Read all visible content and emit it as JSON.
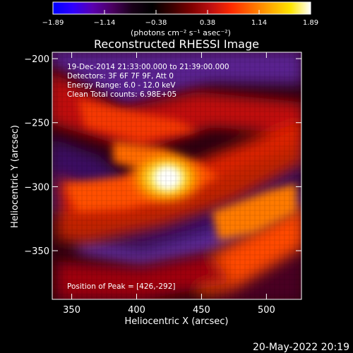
{
  "colorbar": {
    "tick_labels": [
      "−1.89",
      "−1.14",
      "−0.38",
      "0.38",
      "1.14",
      "1.89"
    ],
    "units_label": "(photons cm⁻² s⁻¹ asec⁻²)",
    "colormap": [
      "#0000ff",
      "#2f00ff",
      "#5a00b0",
      "#4a0060",
      "#180018",
      "#000000",
      "#3a0000",
      "#7f0000",
      "#bf1010",
      "#ff2a00",
      "#ff6a00",
      "#ffaa00",
      "#ffe600",
      "#ffffff"
    ]
  },
  "image": {
    "title": "Reconstructed RHESSI Image",
    "info_lines": [
      "19-Dec-2014 21:33:00.000 to 21:39:00.000",
      "Detectors: 3F 6F 7F 9F, Att 0",
      "Energy Range: 6.0 - 12.0 keV",
      "Clean    Total counts: 6.98E+05"
    ],
    "peak_label": "Position of Peak = [426,-292]"
  },
  "axes": {
    "x_label": "Heliocentric X (arcsec)",
    "y_label": "Heliocentric Y (arcsec)",
    "x_ticks": [
      {
        "value": 350,
        "label": "350"
      },
      {
        "value": 400,
        "label": "400"
      },
      {
        "value": 450,
        "label": "450"
      },
      {
        "value": 500,
        "label": "500"
      }
    ],
    "y_ticks": [
      {
        "value": -200,
        "label": "−200"
      },
      {
        "value": -250,
        "label": "−250"
      },
      {
        "value": -300,
        "label": "−300"
      },
      {
        "value": -350,
        "label": "−350"
      }
    ],
    "x_range": [
      335,
      527
    ],
    "y_range": [
      -388,
      -195
    ]
  },
  "footer": {
    "date_label": "20-May-2022 20:19"
  }
}
